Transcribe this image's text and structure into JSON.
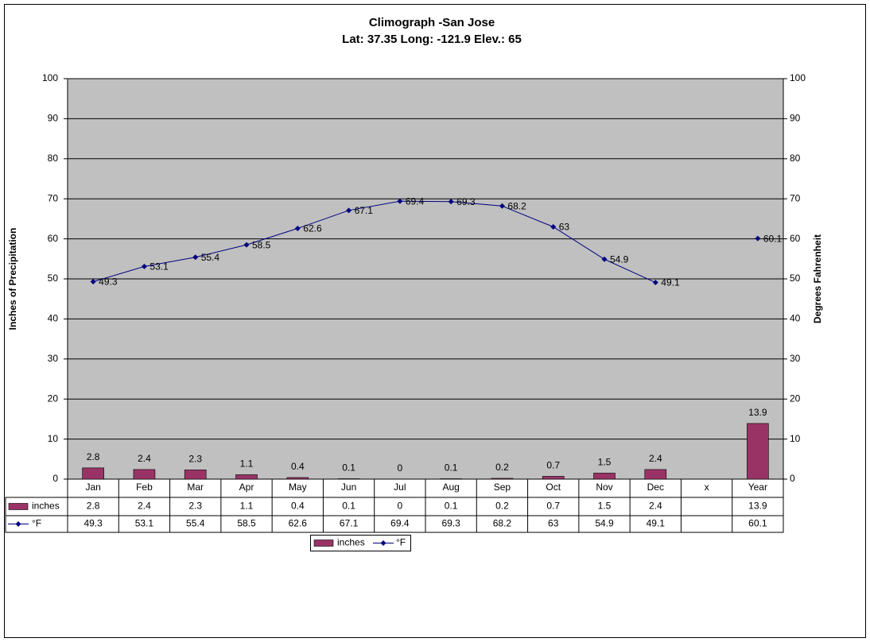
{
  "chart_data": {
    "type": "bar-line",
    "title": "Climograph -San Jose",
    "subtitle": "Lat: 37.35 Long: -121.9 Elev.: 65",
    "y_label": "Inches of Precipitation",
    "y2_label": "Degrees Fahrenheit",
    "categories": [
      "Jan",
      "Feb",
      "Mar",
      "Apr",
      "May",
      "Jun",
      "Jul",
      "Aug",
      "Sep",
      "Oct",
      "Nov",
      "Dec",
      "x",
      "Year"
    ],
    "series": [
      {
        "name": "inches",
        "type": "bar",
        "color": "#993366",
        "axis": "y",
        "values": [
          2.8,
          2.4,
          2.3,
          1.1,
          0.4,
          0.1,
          0,
          0.1,
          0.2,
          0.7,
          1.5,
          2.4,
          null,
          13.9
        ]
      },
      {
        "name": "°F",
        "type": "line",
        "color": "#000080",
        "axis": "y2",
        "values": [
          49.3,
          53.1,
          55.4,
          58.5,
          62.6,
          67.1,
          69.4,
          69.3,
          68.2,
          63,
          54.9,
          49.1,
          null,
          60.1
        ]
      }
    ],
    "ylim": [
      0,
      100
    ],
    "yticks": [
      0,
      10,
      20,
      30,
      40,
      50,
      60,
      70,
      80,
      90,
      100
    ],
    "y2lim": [
      0,
      100
    ],
    "y2ticks": [
      0,
      10,
      20,
      30,
      40,
      50,
      60,
      70,
      80,
      90,
      100
    ],
    "grid": true,
    "plot_background": "#c0c0c0",
    "legend": "bottom",
    "data_table": true
  }
}
